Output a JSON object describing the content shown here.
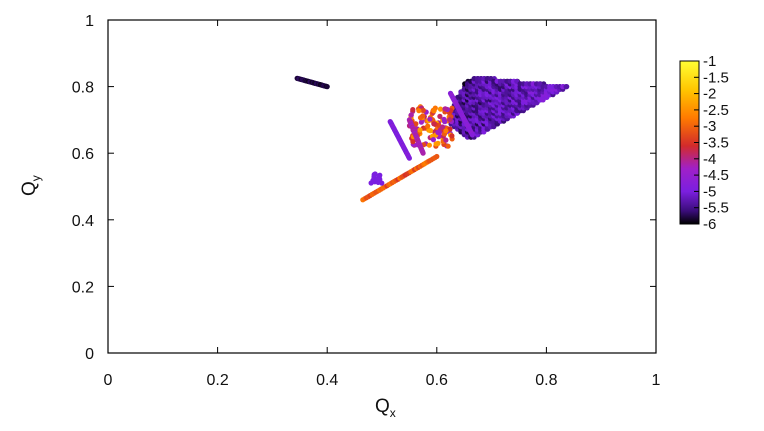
{
  "chart_data": {
    "type": "scatter",
    "title": "",
    "xlabel": {
      "main": "Q",
      "sub": "x"
    },
    "ylabel": {
      "main": "Q",
      "sub": "y"
    },
    "xlim": [
      0,
      1
    ],
    "ylim": [
      0,
      1
    ],
    "xticks": [
      "0",
      "0.2",
      "0.4",
      "0.6",
      "0.8",
      "1"
    ],
    "yticks": [
      "0",
      "0.2",
      "0.4",
      "0.6",
      "0.8",
      "1"
    ],
    "grid": false,
    "colorbar": {
      "range": [
        -6,
        -1
      ],
      "palette": "black-purple-red-orange-yellow",
      "ticks": [
        "-1",
        "-1.5",
        "-2",
        "-2.5",
        "-3",
        "-3.5",
        "-4",
        "-4.5",
        "-5",
        "-5.5",
        "-6"
      ],
      "placement": "right"
    },
    "regions": [
      {
        "name": "resonance-line-upper-left",
        "kind": "line",
        "from": [
          0.345,
          0.825
        ],
        "to": [
          0.4,
          0.8
        ],
        "color_value": -5.8
      },
      {
        "name": "main-triangle",
        "kind": "triangle",
        "vertices": [
          [
            0.645,
            0.81
          ],
          [
            0.675,
            0.83
          ],
          [
            0.84,
            0.8
          ]
        ],
        "second_edge_to": [
          0.66,
          0.64
        ],
        "color_value": -5.4
      },
      {
        "name": "triangle-fill",
        "kind": "polygon",
        "vertices": [
          [
            0.665,
            0.83
          ],
          [
            0.84,
            0.8
          ],
          [
            0.66,
            0.64
          ],
          [
            0.62,
            0.69
          ],
          [
            0.64,
            0.78
          ]
        ],
        "color_value": -5.2
      },
      {
        "name": "mixed-cluster",
        "kind": "cluster",
        "center": [
          0.59,
          0.68
        ],
        "spread": [
          0.04,
          0.06
        ],
        "color_range": [
          -4.5,
          -2.2
        ]
      },
      {
        "name": "diagonal-stripe-1",
        "kind": "line",
        "from": [
          0.515,
          0.695
        ],
        "to": [
          0.55,
          0.585
        ],
        "color_value": -4.9
      },
      {
        "name": "diagonal-stripe-2",
        "kind": "line",
        "from": [
          0.625,
          0.78
        ],
        "to": [
          0.665,
          0.655
        ],
        "color_value": -4.7
      },
      {
        "name": "diagonal-stripe-3",
        "kind": "line",
        "from": [
          0.55,
          0.7
        ],
        "to": [
          0.575,
          0.6
        ],
        "color_value": -4.2
      },
      {
        "name": "lower-tail",
        "kind": "line",
        "from": [
          0.465,
          0.46
        ],
        "to": [
          0.6,
          0.59
        ],
        "color_range": [
          -3.5,
          -2.8
        ]
      },
      {
        "name": "small-cluster-lower",
        "kind": "cluster",
        "center": [
          0.49,
          0.525
        ],
        "spread": [
          0.01,
          0.015
        ],
        "color_value": -5.0
      }
    ]
  }
}
